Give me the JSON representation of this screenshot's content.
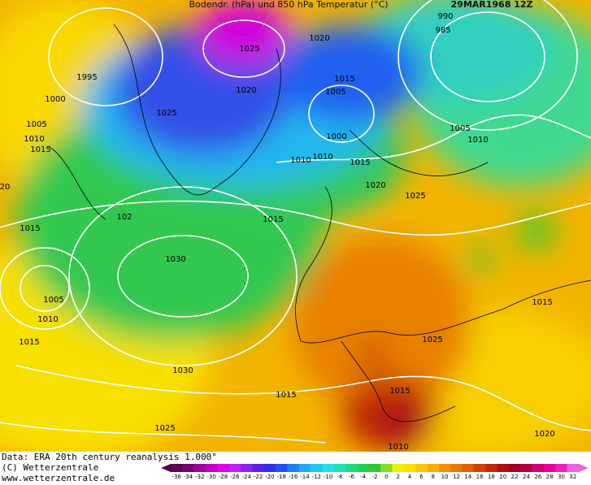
{
  "header": {
    "title": "Bodendr. (hPa) und 850 hPa Temperatur (°C)",
    "date": "29MAR1968 12Z"
  },
  "footer": {
    "lines": [
      "Data: ERA 20th century reanalysis 1.000°",
      "(C) Wetterzentrale",
      "www.wetterzentrale.de"
    ]
  },
  "isobars": [
    "990",
    "985",
    "1020",
    "1025",
    "1995",
    "1000",
    "1015",
    "1020",
    "1005",
    "1025",
    "1005",
    "1005",
    "1010",
    "1000",
    "1010",
    "1015",
    "1010",
    "1010",
    "1015",
    "20",
    "1020",
    "1025",
    "102",
    "1015",
    "1015",
    "1030",
    "1005",
    "1015",
    "1010",
    "1015",
    "1025",
    "1030",
    "1015",
    "1015",
    "1025",
    "1020",
    "1010"
  ],
  "colorbar": {
    "labels": [
      -36,
      -34,
      -32,
      -30,
      -28,
      -26,
      -24,
      -22,
      -20,
      -18,
      -16,
      -14,
      -12,
      -10,
      -8,
      -6,
      -4,
      -2,
      0,
      2,
      4,
      6,
      8,
      10,
      12,
      14,
      16,
      18,
      20,
      22,
      24,
      26,
      28,
      30,
      32
    ],
    "colors": [
      "#5a0050",
      "#7a0070",
      "#a000a0",
      "#c000c8",
      "#e000e8",
      "#c020f0",
      "#9020f0",
      "#6020e0",
      "#3030e8",
      "#2050f0",
      "#2080f0",
      "#20a8f0",
      "#20c8f0",
      "#20e0e0",
      "#20e0b0",
      "#20d880",
      "#20d050",
      "#30c830",
      "#80e020",
      "#f0f000",
      "#f8e000",
      "#f8c800",
      "#f8b000",
      "#f09000",
      "#e87800",
      "#e06000",
      "#d04000",
      "#c02800",
      "#b01010",
      "#a00020",
      "#b00040",
      "#d00070",
      "#e800a0",
      "#f020c0",
      "#f060e0"
    ]
  }
}
